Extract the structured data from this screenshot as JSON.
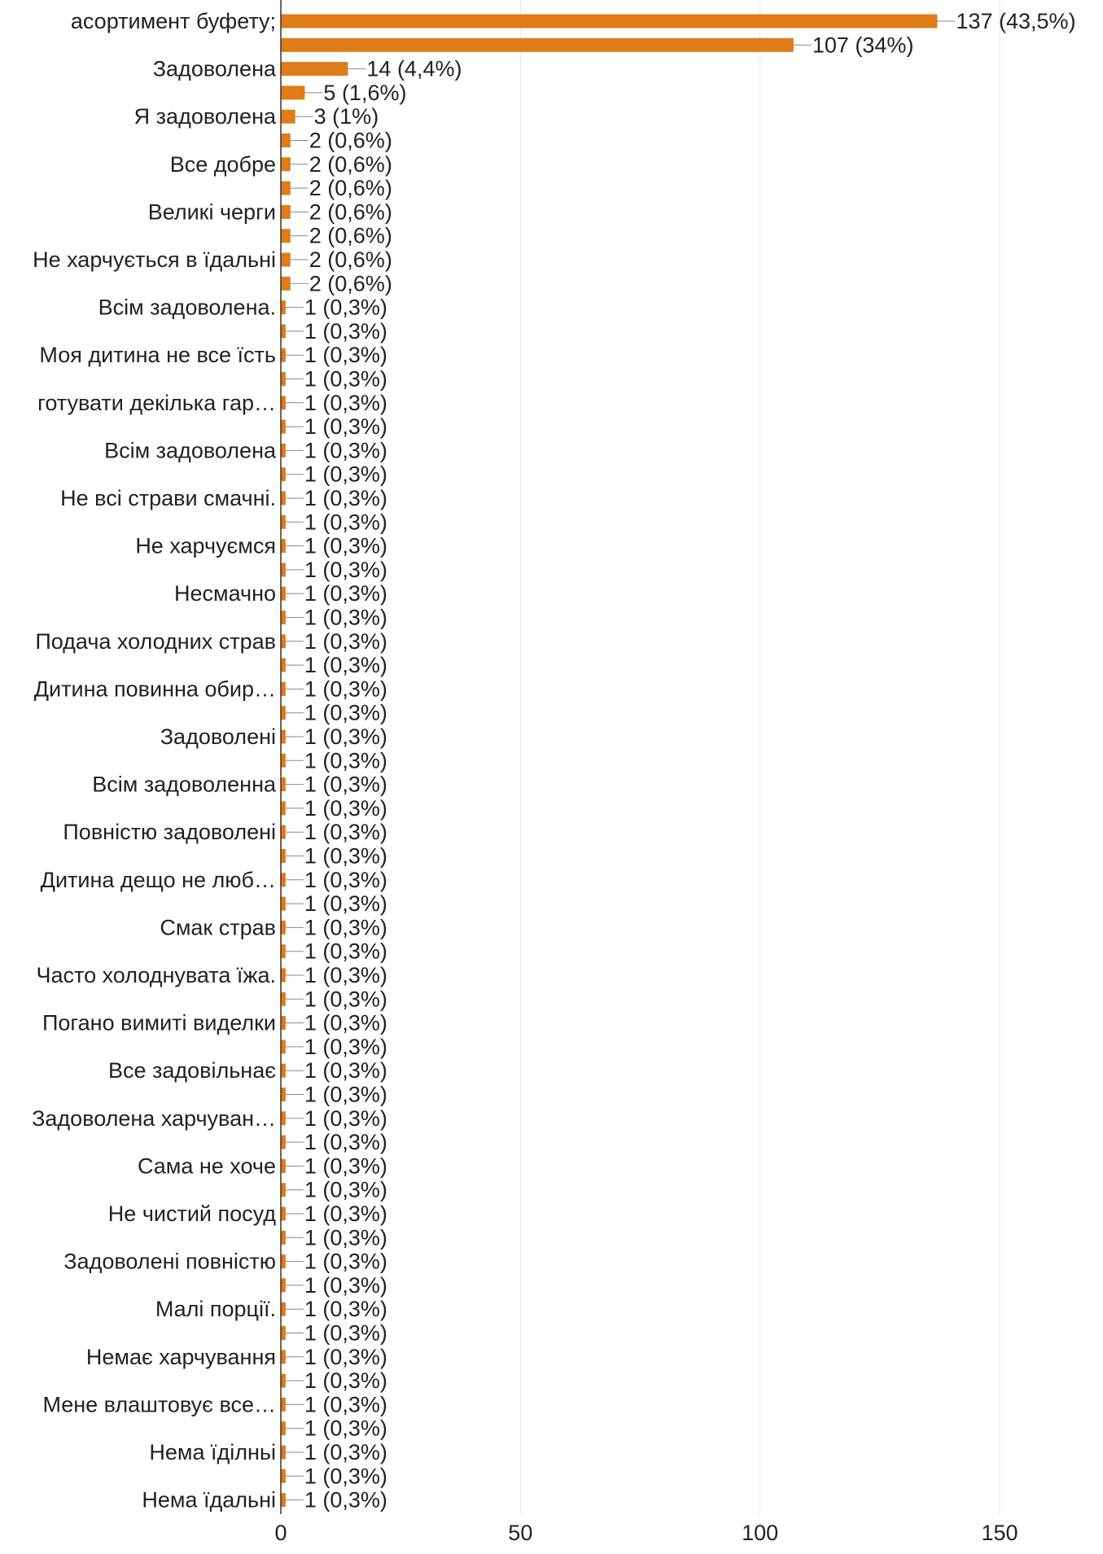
{
  "chart_data": {
    "type": "bar",
    "orientation": "horizontal",
    "title": "",
    "xlabel": "",
    "ylabel": "",
    "xlim": [
      0,
      150
    ],
    "xticks": [
      0,
      50,
      100,
      150
    ],
    "tick_labels": [
      "0",
      "50",
      "100",
      "150"
    ],
    "grid": true,
    "legend": "none",
    "colors": {
      "bar": "#e07b1a",
      "grid": "#e6e6e6",
      "axis": "#333333",
      "leader": "#888888"
    },
    "categories": [
      "асортимент буфету;",
      "",
      "Задоволена",
      "",
      "Я задоволена",
      "",
      "Все добре",
      "",
      "Великі черги",
      "",
      "Не харчується в їдальні",
      "",
      "Всім задоволена.",
      "",
      "Моя дитина не все їсть",
      "",
      "готувати декілька гар…",
      "",
      "Всім задоволена",
      "",
      "Не всі страви смачні.",
      "",
      "Не харчуємся",
      "",
      "Несмачно",
      "",
      "Подача холодних страв",
      "",
      "Дитина повинна обир…",
      "",
      "Задоволені",
      "",
      "Всім задоволенна",
      "",
      "Повністю задоволені",
      "",
      "Дитина дещо не люб…",
      "",
      "Смак страв",
      "",
      "Часто холоднувата їжа.",
      "",
      "Погано вимиті виделки",
      "",
      "Все задовільнає",
      "",
      "Задоволена харчуван…",
      "",
      "Сама не хоче",
      "",
      "Не чистий посуд",
      "",
      "Задоволені повністю",
      "",
      "Малі порції.",
      "",
      "Немає харчування",
      "",
      "Мене влаштовує все…",
      "",
      "Нема їділньі",
      "",
      "Нема їдальні"
    ],
    "values": [
      137,
      107,
      14,
      5,
      3,
      2,
      2,
      2,
      2,
      2,
      2,
      2,
      1,
      1,
      1,
      1,
      1,
      1,
      1,
      1,
      1,
      1,
      1,
      1,
      1,
      1,
      1,
      1,
      1,
      1,
      1,
      1,
      1,
      1,
      1,
      1,
      1,
      1,
      1,
      1,
      1,
      1,
      1,
      1,
      1,
      1,
      1,
      1,
      1,
      1,
      1,
      1,
      1,
      1,
      1,
      1,
      1,
      1,
      1,
      1,
      1,
      1,
      1
    ],
    "value_labels": [
      "137 (43,5%)",
      "107 (34%)",
      "14 (4,4%)",
      "5 (1,6%)",
      "3 (1%)",
      "2 (0,6%)",
      "2 (0,6%)",
      "2 (0,6%)",
      "2 (0,6%)",
      "2 (0,6%)",
      "2 (0,6%)",
      "2 (0,6%)",
      "1 (0,3%)",
      "1 (0,3%)",
      "1 (0,3%)",
      "1 (0,3%)",
      "1 (0,3%)",
      "1 (0,3%)",
      "1 (0,3%)",
      "1 (0,3%)",
      "1 (0,3%)",
      "1 (0,3%)",
      "1 (0,3%)",
      "1 (0,3%)",
      "1 (0,3%)",
      "1 (0,3%)",
      "1 (0,3%)",
      "1 (0,3%)",
      "1 (0,3%)",
      "1 (0,3%)",
      "1 (0,3%)",
      "1 (0,3%)",
      "1 (0,3%)",
      "1 (0,3%)",
      "1 (0,3%)",
      "1 (0,3%)",
      "1 (0,3%)",
      "1 (0,3%)",
      "1 (0,3%)",
      "1 (0,3%)",
      "1 (0,3%)",
      "1 (0,3%)",
      "1 (0,3%)",
      "1 (0,3%)",
      "1 (0,3%)",
      "1 (0,3%)",
      "1 (0,3%)",
      "1 (0,3%)",
      "1 (0,3%)",
      "1 (0,3%)",
      "1 (0,3%)",
      "1 (0,3%)",
      "1 (0,3%)",
      "1 (0,3%)",
      "1 (0,3%)",
      "1 (0,3%)",
      "1 (0,3%)",
      "1 (0,3%)",
      "1 (0,3%)",
      "1 (0,3%)",
      "1 (0,3%)",
      "1 (0,3%)",
      "1 (0,3%)"
    ]
  }
}
